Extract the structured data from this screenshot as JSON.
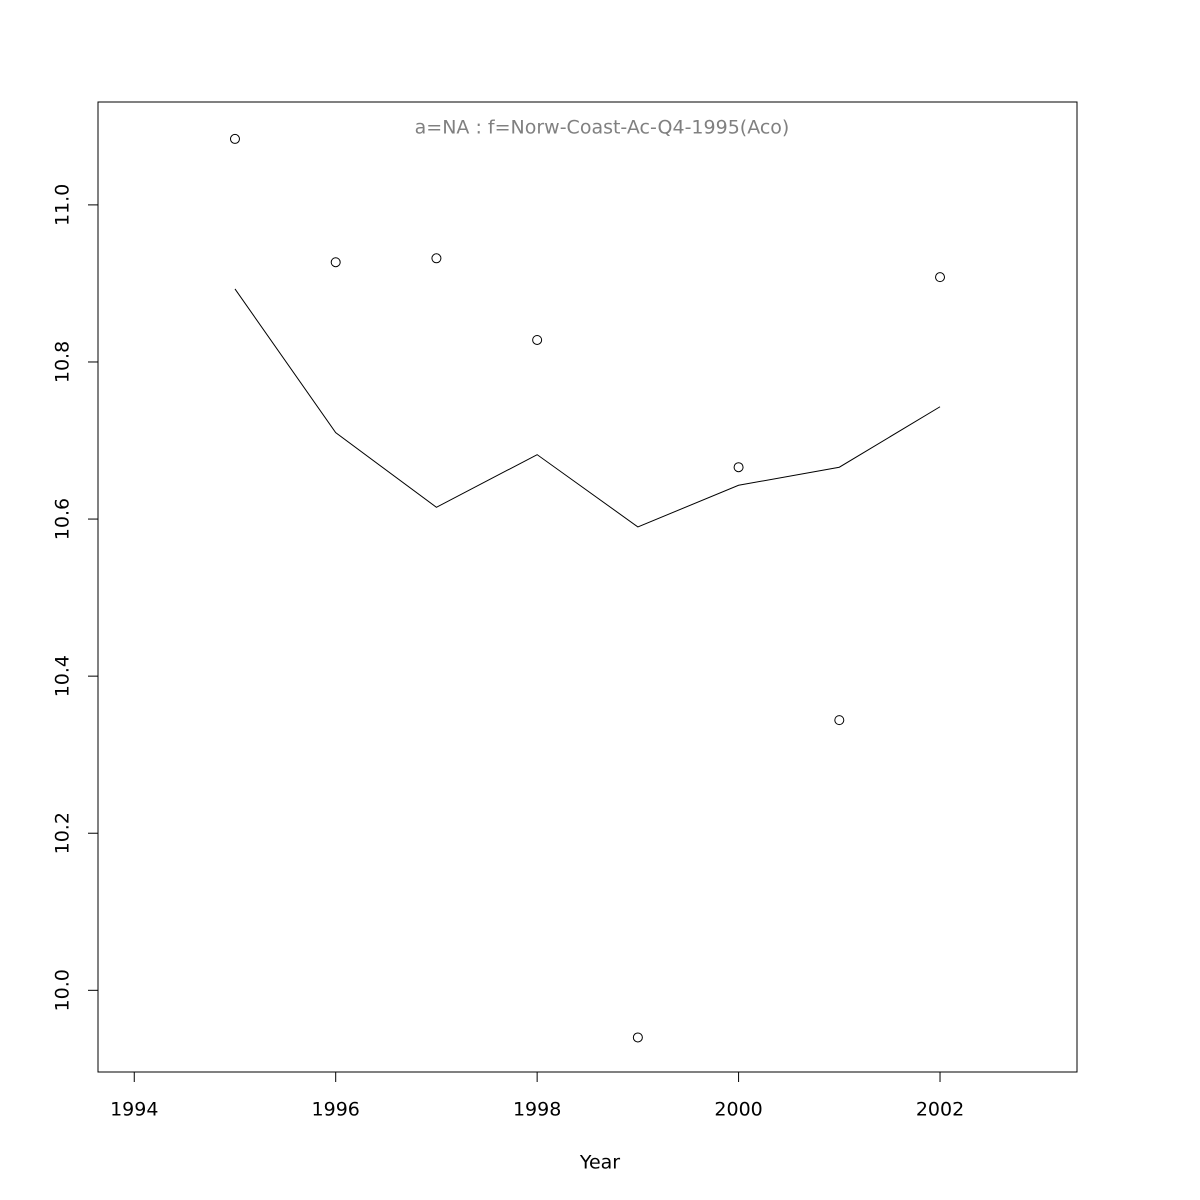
{
  "chart_data": {
    "type": "line",
    "title": "a=NA  :  f=Norw-Coast-Ac-Q4-1995(Aco)",
    "x_label": "Year",
    "x": [
      1995,
      1996,
      1997,
      1998,
      1999,
      2000,
      2001,
      2002
    ],
    "series": [
      {
        "type": "scatter",
        "color": "#000000",
        "values": [
          11.084,
          10.927,
          10.932,
          10.828,
          9.94,
          10.666,
          10.344,
          10.908
        ]
      },
      {
        "type": "line",
        "color": "#000000",
        "values": [
          10.893,
          10.71,
          10.615,
          10.682,
          10.59,
          10.643,
          10.666,
          10.743
        ]
      }
    ],
    "xlim": [
      1993.64,
      2003.36
    ],
    "xticks": [
      1994,
      1996,
      1998,
      2000,
      2002
    ],
    "ylim": [
      9.896,
      11.131
    ],
    "yticks": [
      {
        "value": 10,
        "label": "10.0"
      },
      10.2,
      10.4,
      10.6,
      10.8,
      {
        "value": 11,
        "label": "11.0"
      }
    ],
    "title_color": "#808080"
  }
}
